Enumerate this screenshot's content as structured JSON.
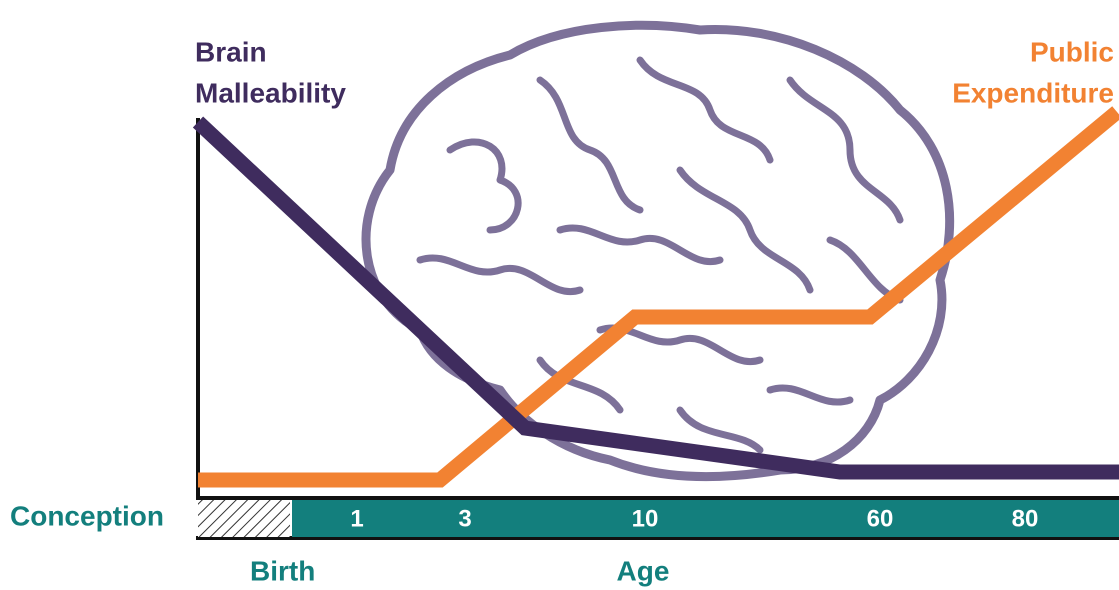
{
  "left_label": {
    "lines": [
      "Brain",
      "Malleability"
    ]
  },
  "right_label": {
    "lines": [
      "Public",
      "Expenditure"
    ]
  },
  "timeline": {
    "start": "Conception",
    "birth": "Birth",
    "axis_label": "Age",
    "ages": [
      "1",
      "3",
      "10",
      "60",
      "80"
    ]
  }
}
